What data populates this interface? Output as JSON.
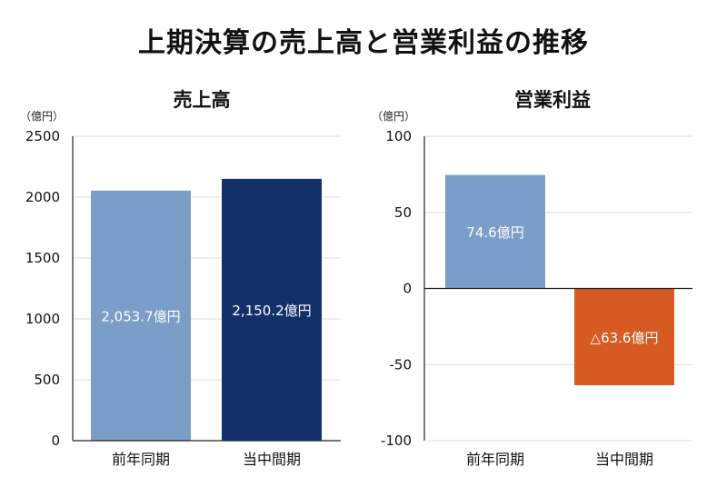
{
  "page_title": "上期決算の売上高と営業利益の推移",
  "colors": {
    "prev_period": "#7a9ec8",
    "current_period": "#14306b",
    "negative": "#d65a22",
    "grid": "#dddddd",
    "axis": "#222222"
  },
  "chart_data": [
    {
      "type": "bar",
      "title": "売上高",
      "unit": "（億円）",
      "categories": [
        "前年同期",
        "当中間期"
      ],
      "values": [
        2053.7,
        2150.2
      ],
      "data_labels": [
        "2,053.7億円",
        "2,150.2億円"
      ],
      "bar_colors": [
        "#7a9ec8",
        "#14306b"
      ],
      "ylim": [
        0,
        2500
      ],
      "yticks": [
        0,
        500,
        1000,
        1500,
        2000,
        2500
      ],
      "ytick_labels": [
        "0",
        "500",
        "1000",
        "1500",
        "2000",
        "2500"
      ],
      "grid": true
    },
    {
      "type": "bar",
      "title": "営業利益",
      "unit": "（億円）",
      "categories": [
        "前年同期",
        "当中間期"
      ],
      "values": [
        74.6,
        -63.6
      ],
      "data_labels": [
        "74.6億円",
        "△63.6億円"
      ],
      "bar_colors": [
        "#7a9ec8",
        "#d65a22"
      ],
      "ylim": [
        -100,
        100
      ],
      "yticks": [
        -100,
        -50,
        0,
        50,
        100
      ],
      "ytick_labels": [
        "-100",
        "-50",
        "0",
        "50",
        "100"
      ],
      "grid": true
    }
  ]
}
